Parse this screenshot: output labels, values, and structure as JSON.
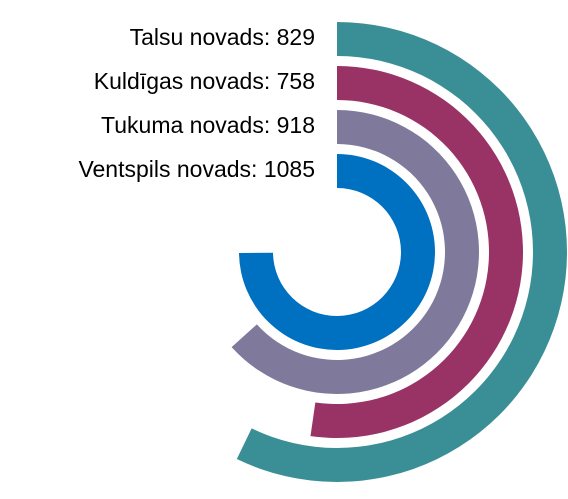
{
  "chart_data": {
    "type": "radial_bar",
    "categories": [
      "Talsu novads",
      "Kuldīgas novads",
      "Tukuma novads",
      "Ventspils novads"
    ],
    "labels": [
      "Talsu novads: 829",
      "Kuldīgas novads: 758",
      "Tukuma novads: 918",
      "Ventspils novads: 1085"
    ],
    "values": [
      829,
      758,
      918,
      1085
    ],
    "colors": [
      "#3a8e96",
      "#993366",
      "#7f7a9c",
      "#0070c0"
    ],
    "xlim": [
      0,
      1450
    ]
  }
}
